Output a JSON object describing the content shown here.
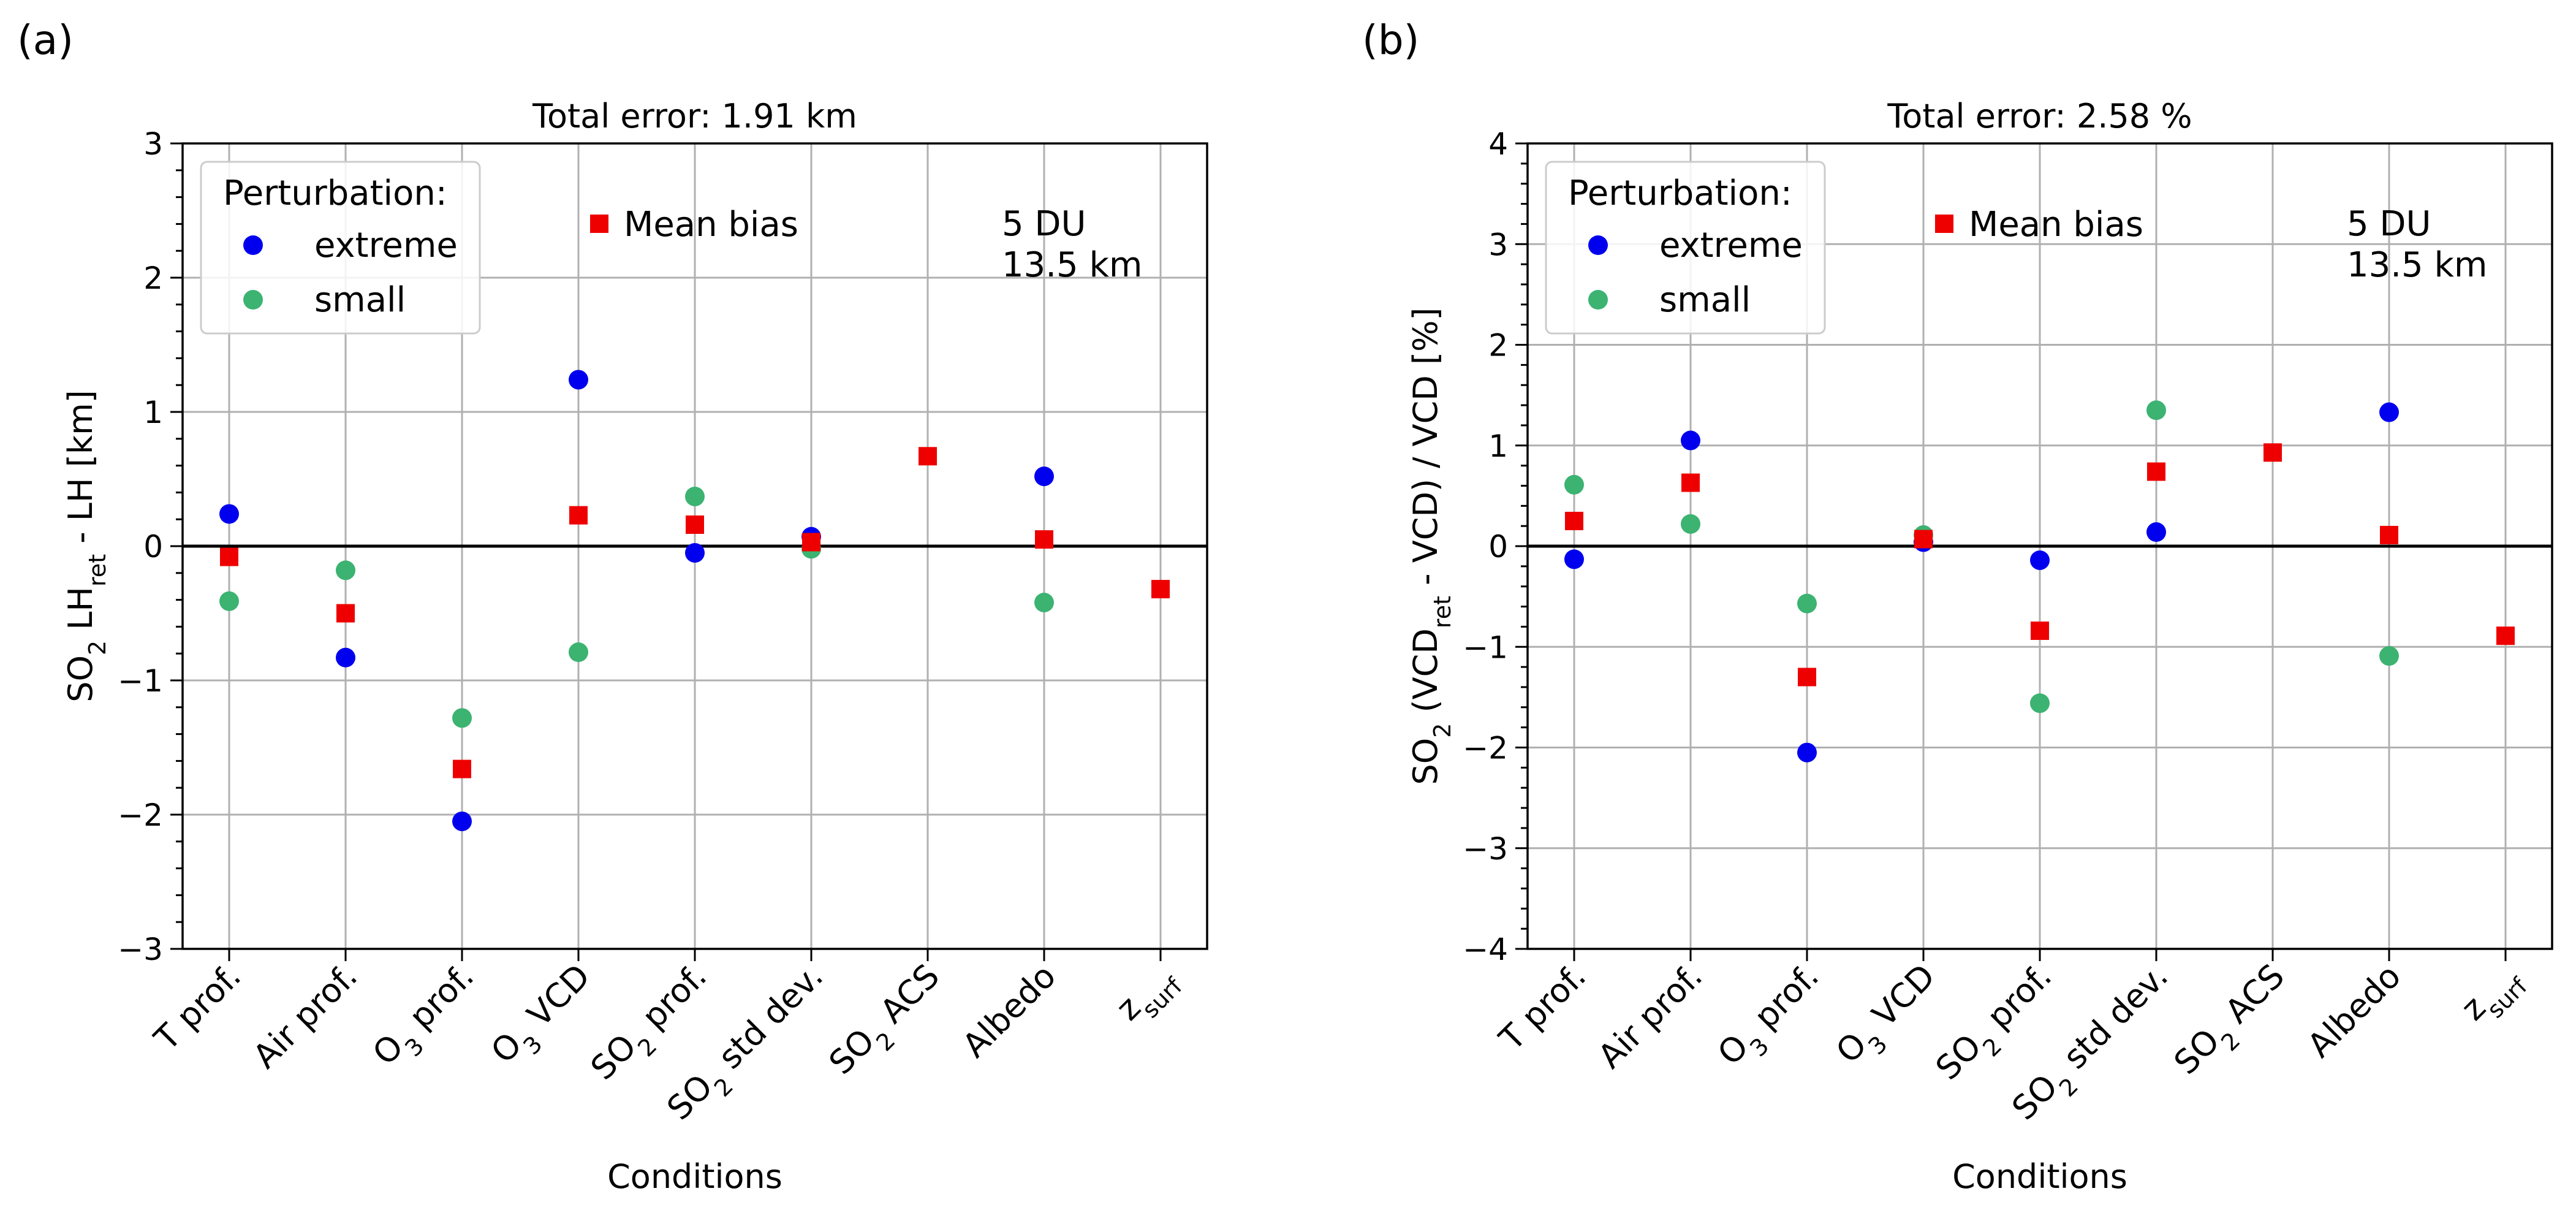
{
  "colors": {
    "extreme": "#0000ee",
    "small": "#3cb371",
    "mean_bias": "#ee0000",
    "grid": "#b0b0b0",
    "zero_line": "#000000"
  },
  "chart_data": [
    {
      "type": "scatter",
      "panel_label": "(a)",
      "title": "Total error: 1.91 km",
      "xlabel": "Conditions",
      "ylabel_prefix": "SO",
      "ylabel_sub1": "2",
      "ylabel_mid": " LH",
      "ylabel_sub2": "ret",
      "ylabel_suffix": " - LH [km]",
      "ylim": [
        -3,
        3
      ],
      "yticks": [
        -3,
        -2,
        -1,
        0,
        1,
        2,
        3
      ],
      "categories": [
        {
          "text": "T prof.",
          "sub": "",
          "rest": ""
        },
        {
          "text": "Air prof.",
          "sub": "",
          "rest": ""
        },
        {
          "text": "O",
          "sub": "3",
          "rest": " prof."
        },
        {
          "text": "O",
          "sub": "3",
          "rest": " VCD"
        },
        {
          "text": "SO",
          "sub": "2",
          "rest": " prof."
        },
        {
          "text": "SO",
          "sub": "2",
          "rest": " std dev."
        },
        {
          "text": "SO",
          "sub": "2",
          "rest": " ACS"
        },
        {
          "text": "Albedo",
          "sub": "",
          "rest": ""
        },
        {
          "text": "z",
          "sub": "surf",
          "rest": ""
        }
      ],
      "series": [
        {
          "key": "extreme",
          "name": "extreme",
          "marker": "circle",
          "values": [
            0.24,
            -0.83,
            -2.05,
            1.24,
            -0.05,
            0.07,
            null,
            0.52,
            null
          ]
        },
        {
          "key": "small",
          "name": "small",
          "marker": "circle",
          "values": [
            -0.41,
            -0.18,
            -1.28,
            -0.79,
            0.37,
            -0.02,
            null,
            -0.42,
            null
          ]
        },
        {
          "key": "mean_bias",
          "name": "Mean bias",
          "marker": "square",
          "values": [
            -0.08,
            -0.5,
            -1.66,
            0.23,
            0.16,
            0.03,
            0.67,
            0.05,
            -0.32
          ]
        }
      ],
      "legend_title": "Perturbation:",
      "legend_placement": "top-left",
      "annotation_line1": "5 DU",
      "annotation_line2": "13.5 km",
      "grid": true
    },
    {
      "type": "scatter",
      "panel_label": "(b)",
      "title": "Total error: 2.58 %",
      "xlabel": "Conditions",
      "ylabel_prefix": "SO",
      "ylabel_sub1": "2",
      "ylabel_mid": " (VCD",
      "ylabel_sub2": "ret",
      "ylabel_suffix": " - VCD) / VCD [%]",
      "ylim": [
        -4,
        4
      ],
      "yticks": [
        -4,
        -3,
        -2,
        -1,
        0,
        1,
        2,
        3,
        4
      ],
      "categories": [
        {
          "text": "T prof.",
          "sub": "",
          "rest": ""
        },
        {
          "text": "Air prof.",
          "sub": "",
          "rest": ""
        },
        {
          "text": "O",
          "sub": "3",
          "rest": " prof."
        },
        {
          "text": "O",
          "sub": "3",
          "rest": " VCD"
        },
        {
          "text": "SO",
          "sub": "2",
          "rest": " prof."
        },
        {
          "text": "SO",
          "sub": "2",
          "rest": " std dev."
        },
        {
          "text": "SO",
          "sub": "2",
          "rest": " ACS"
        },
        {
          "text": "Albedo",
          "sub": "",
          "rest": ""
        },
        {
          "text": "z",
          "sub": "surf",
          "rest": ""
        }
      ],
      "series": [
        {
          "key": "extreme",
          "name": "extreme",
          "marker": "circle",
          "values": [
            -0.13,
            1.05,
            -2.05,
            0.04,
            -0.14,
            0.14,
            null,
            1.33,
            null
          ]
        },
        {
          "key": "small",
          "name": "small",
          "marker": "circle",
          "values": [
            0.61,
            0.22,
            -0.57,
            0.11,
            -1.56,
            1.35,
            null,
            -1.09,
            null
          ]
        },
        {
          "key": "mean_bias",
          "name": "Mean bias",
          "marker": "square",
          "values": [
            0.25,
            0.63,
            -1.3,
            0.07,
            -0.84,
            0.74,
            0.93,
            0.11,
            -0.89
          ]
        }
      ],
      "legend_title": "Perturbation:",
      "legend_placement": "top-left",
      "annotation_line1": "5 DU",
      "annotation_line2": "13.5 km",
      "grid": true
    }
  ]
}
